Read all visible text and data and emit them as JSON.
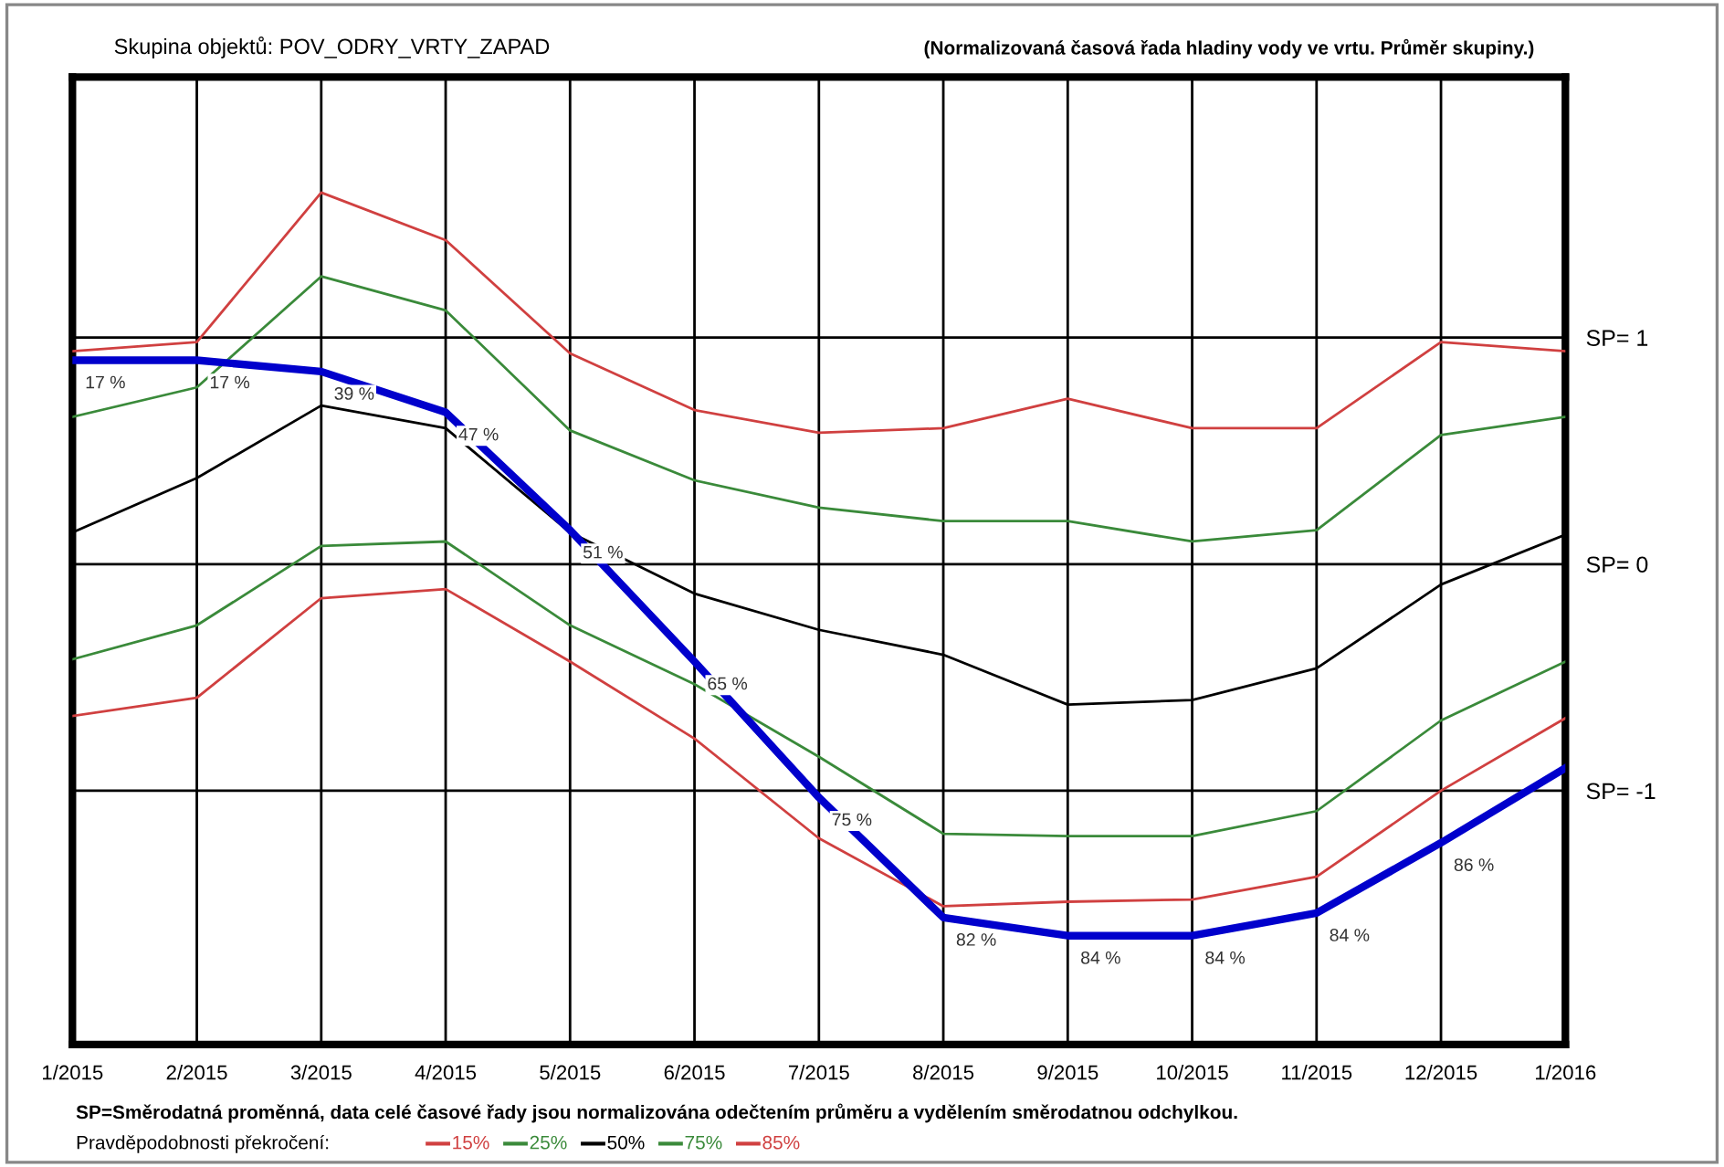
{
  "chart_data": {
    "type": "line",
    "title": "Skupina objektů: POV_ODRY_VRTY_ZAPAD",
    "subtitle": "(Normalizovaná časová řada hladiny vody ve vrtu. Průměr skupiny.)",
    "legend_title": "Pravděpodobnosti překročení:",
    "annotations": [
      "SP=Směrodatná proměnná, data celé časové řady jsou normalizována odečtením průměru a vydělením směrodatnou odchylkou.",
      {
        "text": "17 %",
        "x": "1/2015",
        "y": 0.9
      },
      {
        "text": "17 %",
        "x": "2/2015",
        "y": 0.9
      },
      {
        "text": "39 %",
        "x": "3/2015",
        "y": 0.85
      },
      {
        "text": "47 %",
        "x": "4/2015",
        "y": 0.67
      },
      {
        "text": "51 %",
        "x": "5/2015",
        "y": 0.15
      },
      {
        "text": "65 %",
        "x": "6/2015",
        "y": -0.43
      },
      {
        "text": "75 %",
        "x": "7/2015",
        "y": -1.03
      },
      {
        "text": "82 %",
        "x": "8/2015",
        "y": -1.56
      },
      {
        "text": "84 %",
        "x": "9/2015",
        "y": -1.64
      },
      {
        "text": "84 %",
        "x": "10/2015",
        "y": -1.64
      },
      {
        "text": "84 %",
        "x": "11/2015",
        "y": -1.54
      },
      {
        "text": "86 %",
        "x": "12/2015",
        "y": -1.23
      }
    ],
    "categories": [
      "1/2015",
      "2/2015",
      "3/2015",
      "4/2015",
      "5/2015",
      "6/2015",
      "7/2015",
      "8/2015",
      "9/2015",
      "10/2015",
      "11/2015",
      "12/2015",
      "1/2016"
    ],
    "series": [
      {
        "name": "15%",
        "color": "#d04040",
        "values": [
          0.94,
          0.98,
          1.64,
          1.43,
          0.93,
          0.68,
          0.58,
          0.6,
          0.73,
          0.6,
          0.6,
          0.98,
          0.94
        ]
      },
      {
        "name": "25%",
        "color": "#3a8a3a",
        "values": [
          0.65,
          0.78,
          1.27,
          1.12,
          0.59,
          0.37,
          0.25,
          0.19,
          0.19,
          0.1,
          0.15,
          0.57,
          0.65
        ]
      },
      {
        "name": "50%",
        "color": "#000000",
        "values": [
          0.14,
          0.38,
          0.7,
          0.6,
          0.14,
          -0.13,
          -0.29,
          -0.4,
          -0.62,
          -0.6,
          -0.46,
          -0.09,
          0.13
        ]
      },
      {
        "name": "75%",
        "color": "#3a8a3a",
        "values": [
          -0.42,
          -0.27,
          0.08,
          0.1,
          -0.27,
          -0.53,
          -0.85,
          -1.19,
          -1.2,
          -1.2,
          -1.09,
          -0.69,
          -0.43
        ]
      },
      {
        "name": "85%",
        "color": "#d04040",
        "values": [
          -0.67,
          -0.59,
          -0.15,
          -0.11,
          -0.43,
          -0.77,
          -1.21,
          -1.51,
          -1.49,
          -1.48,
          -1.38,
          -1.0,
          -0.68
        ]
      },
      {
        "color": "#0000cc",
        "values": [
          0.9,
          0.9,
          0.85,
          0.67,
          0.15,
          -0.43,
          -1.03,
          -1.56,
          -1.64,
          -1.64,
          -1.54,
          -1.23,
          -0.9
        ]
      }
    ],
    "ylim": [
      -2.12,
      2.15
    ],
    "yticks": [
      {
        "value": 1,
        "label": "SP= 1"
      },
      {
        "value": 0,
        "label": "SP= 0"
      },
      {
        "value": -1,
        "label": "SP= -1"
      }
    ],
    "grid": true,
    "legend": "bottom"
  }
}
